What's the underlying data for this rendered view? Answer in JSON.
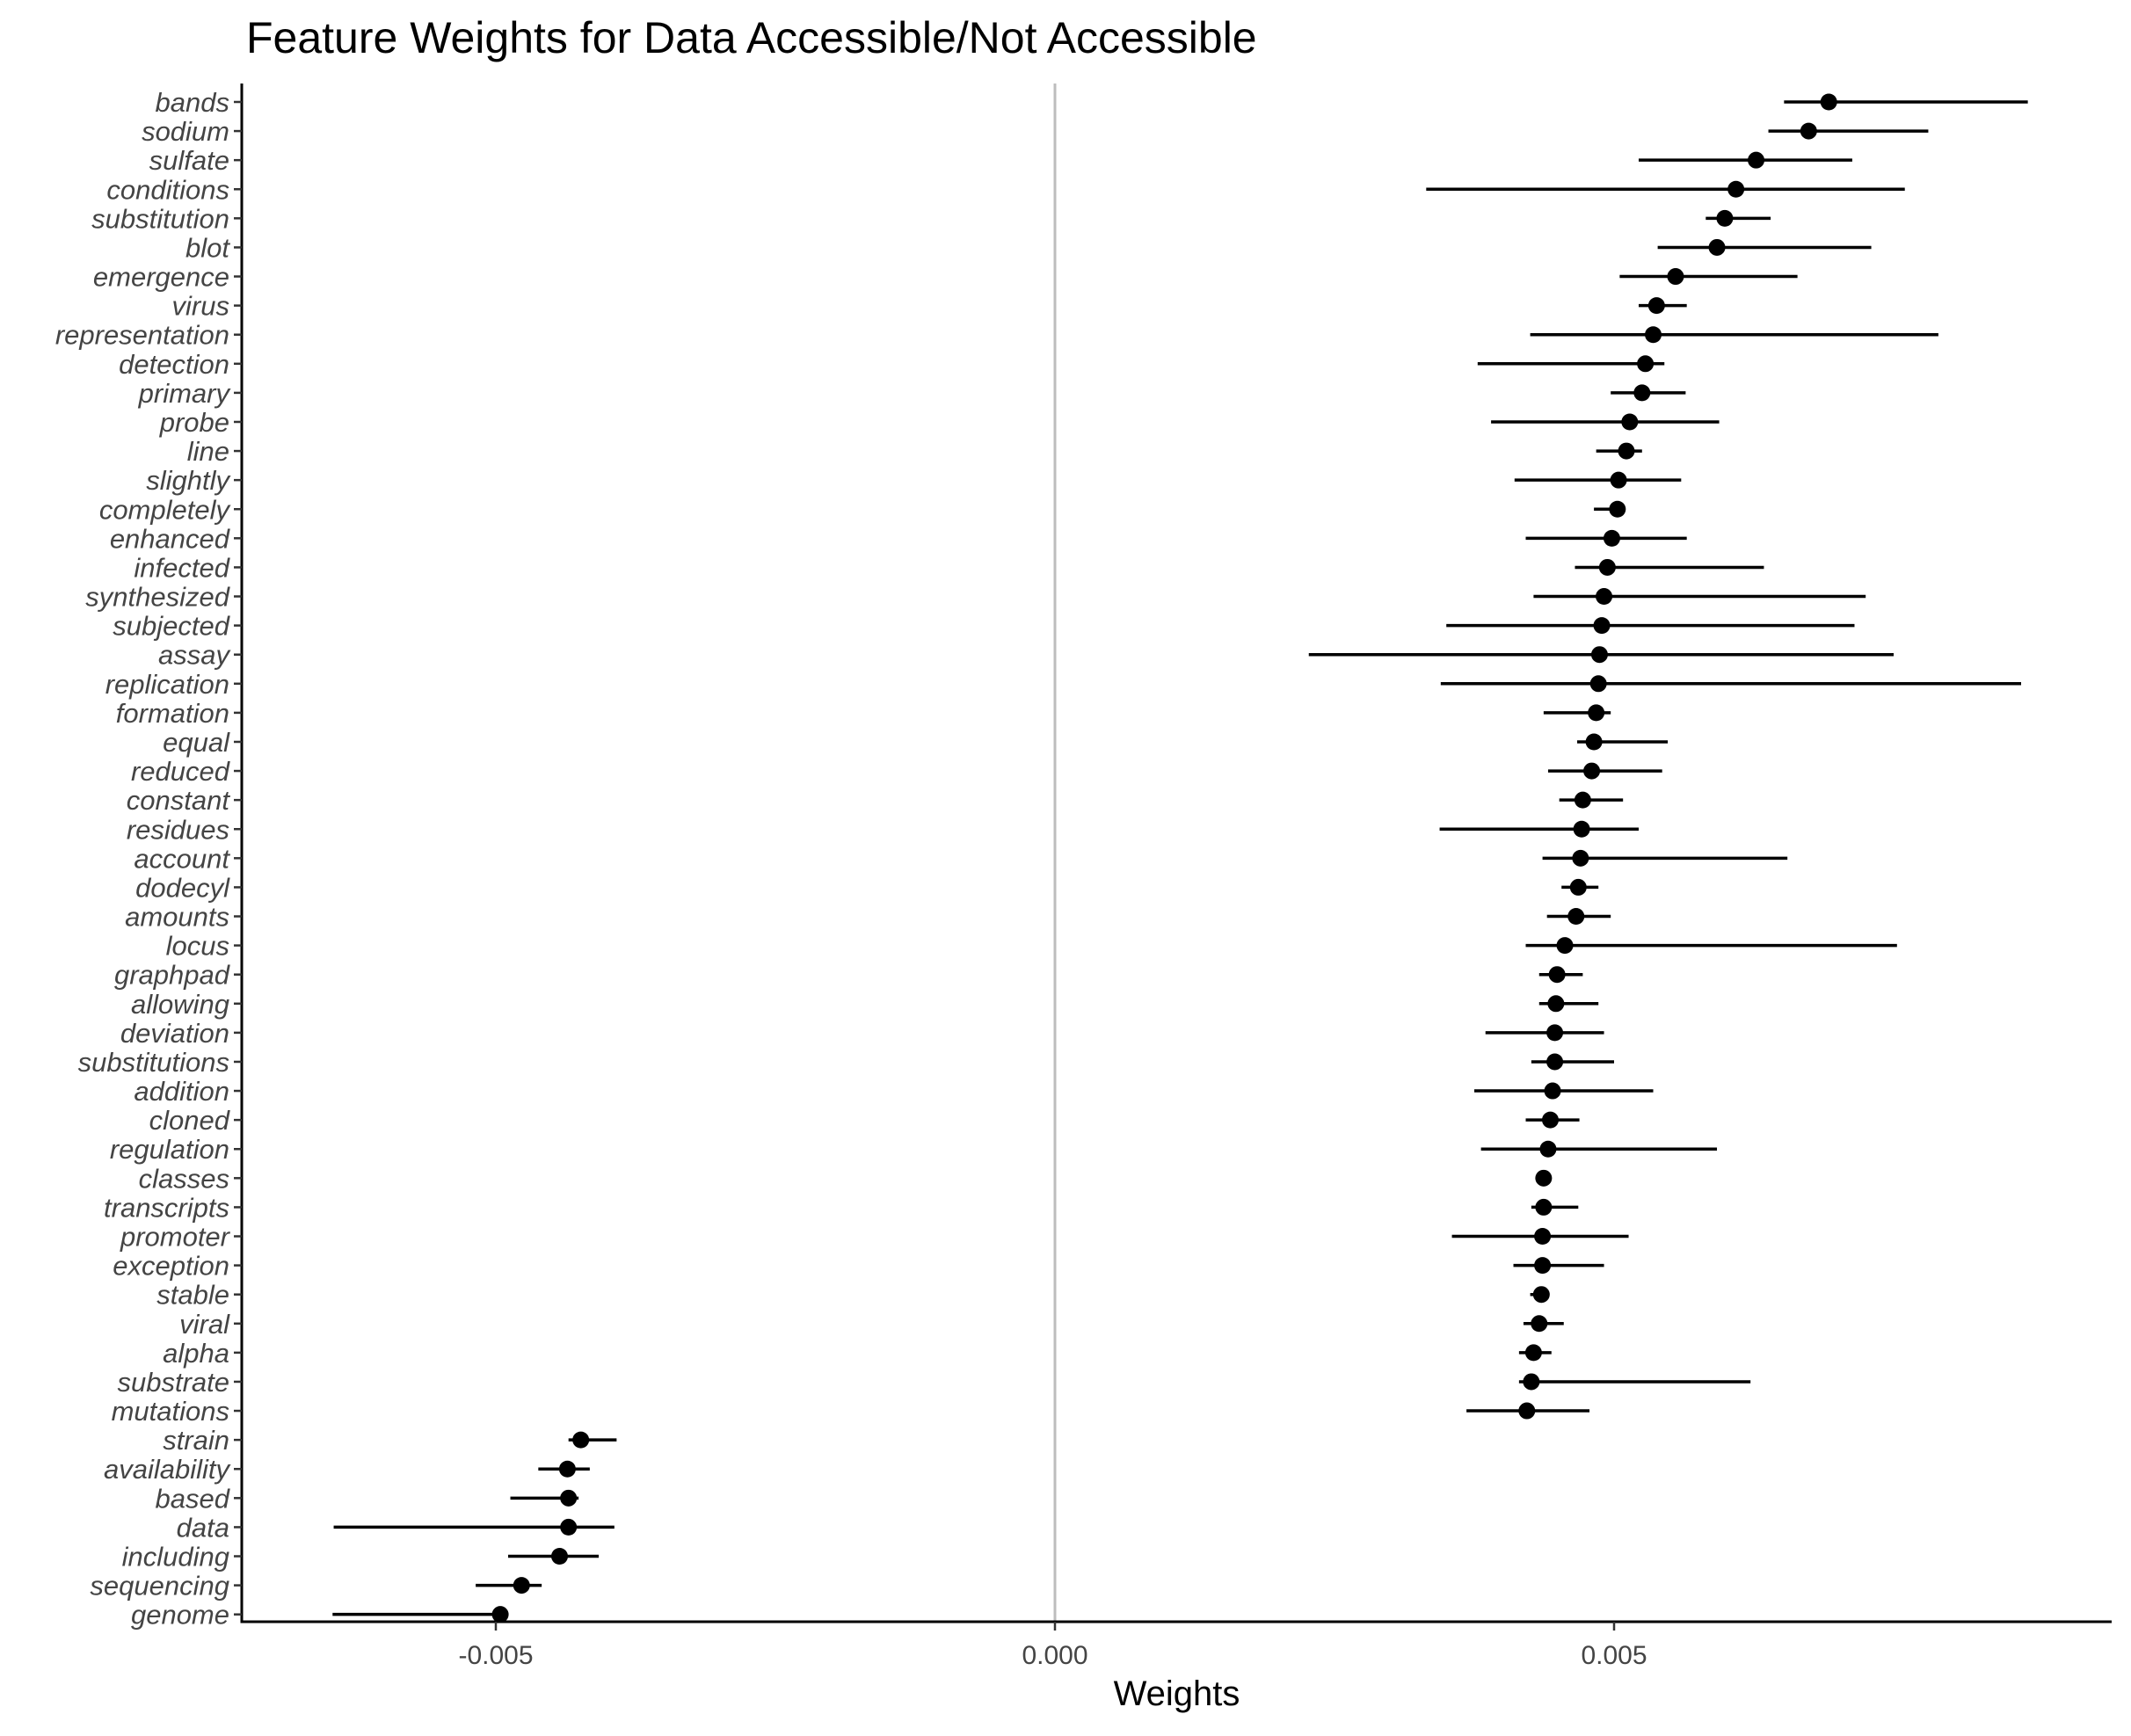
{
  "chart_data": {
    "type": "scatter",
    "title": "Feature Weights for Data Accessible/Not Accessible",
    "xlabel": "Weights",
    "ylabel": "",
    "xlim": [
      -0.0073,
      0.0094
    ],
    "x_ticks": [
      -0.005,
      0.0,
      0.005
    ],
    "x_tick_labels": [
      "-0.005",
      "0.000",
      "0.005"
    ],
    "reference_line_x": 0,
    "grid": false,
    "legend": "none",
    "point_color": "#000000",
    "reference_line_color": "#bdbdbd",
    "features": [
      {
        "name": "bands",
        "value": 0.00692,
        "low": 0.00652,
        "high": 0.0087
      },
      {
        "name": "sodium",
        "value": 0.00674,
        "low": 0.00638,
        "high": 0.00781
      },
      {
        "name": "sulfate",
        "value": 0.00627,
        "low": 0.00522,
        "high": 0.00713
      },
      {
        "name": "conditions",
        "value": 0.00609,
        "low": 0.00332,
        "high": 0.0076
      },
      {
        "name": "substitution",
        "value": 0.00599,
        "low": 0.00582,
        "high": 0.0064
      },
      {
        "name": "blot",
        "value": 0.00592,
        "low": 0.00539,
        "high": 0.0073
      },
      {
        "name": "emergence",
        "value": 0.00555,
        "low": 0.00505,
        "high": 0.00664
      },
      {
        "name": "virus",
        "value": 0.00538,
        "low": 0.00522,
        "high": 0.00565
      },
      {
        "name": "representation",
        "value": 0.00535,
        "low": 0.00425,
        "high": 0.0079
      },
      {
        "name": "detection",
        "value": 0.00528,
        "low": 0.00378,
        "high": 0.00545
      },
      {
        "name": "primary",
        "value": 0.00525,
        "low": 0.00497,
        "high": 0.00564
      },
      {
        "name": "probe",
        "value": 0.00514,
        "low": 0.0039,
        "high": 0.00594
      },
      {
        "name": "line",
        "value": 0.00511,
        "low": 0.00484,
        "high": 0.00525
      },
      {
        "name": "slightly",
        "value": 0.00504,
        "low": 0.00411,
        "high": 0.0056
      },
      {
        "name": "completely",
        "value": 0.00503,
        "low": 0.00482,
        "high": 0.00509
      },
      {
        "name": "enhanced",
        "value": 0.00498,
        "low": 0.00421,
        "high": 0.00565
      },
      {
        "name": "infected",
        "value": 0.00494,
        "low": 0.00465,
        "high": 0.00634
      },
      {
        "name": "synthesized",
        "value": 0.00491,
        "low": 0.00428,
        "high": 0.00725
      },
      {
        "name": "subjected",
        "value": 0.00489,
        "low": 0.0035,
        "high": 0.00715
      },
      {
        "name": "assay",
        "value": 0.00487,
        "low": 0.00227,
        "high": 0.0075
      },
      {
        "name": "replication",
        "value": 0.00486,
        "low": 0.00345,
        "high": 0.00864
      },
      {
        "name": "formation",
        "value": 0.00484,
        "low": 0.00437,
        "high": 0.00497
      },
      {
        "name": "equal",
        "value": 0.00482,
        "low": 0.00467,
        "high": 0.00548
      },
      {
        "name": "reduced",
        "value": 0.0048,
        "low": 0.00441,
        "high": 0.00543
      },
      {
        "name": "constant",
        "value": 0.00472,
        "low": 0.00451,
        "high": 0.00508
      },
      {
        "name": "residues",
        "value": 0.00471,
        "low": 0.00344,
        "high": 0.00522
      },
      {
        "name": "account",
        "value": 0.0047,
        "low": 0.00436,
        "high": 0.00655
      },
      {
        "name": "dodecyl",
        "value": 0.00468,
        "low": 0.00453,
        "high": 0.00486
      },
      {
        "name": "amounts",
        "value": 0.00466,
        "low": 0.0044,
        "high": 0.00497
      },
      {
        "name": "locus",
        "value": 0.00456,
        "low": 0.00421,
        "high": 0.00753
      },
      {
        "name": "graphpad",
        "value": 0.00449,
        "low": 0.00433,
        "high": 0.00472
      },
      {
        "name": "allowing",
        "value": 0.00448,
        "low": 0.00433,
        "high": 0.00486
      },
      {
        "name": "deviation",
        "value": 0.00447,
        "low": 0.00385,
        "high": 0.00491
      },
      {
        "name": "substitutions",
        "value": 0.00447,
        "low": 0.00426,
        "high": 0.005
      },
      {
        "name": "addition",
        "value": 0.00445,
        "low": 0.00375,
        "high": 0.00535
      },
      {
        "name": "cloned",
        "value": 0.00443,
        "low": 0.00421,
        "high": 0.00469
      },
      {
        "name": "regulation",
        "value": 0.00441,
        "low": 0.00381,
        "high": 0.00592
      },
      {
        "name": "classes",
        "value": 0.00437,
        "low": 0.0043,
        "high": 0.00443
      },
      {
        "name": "transcripts",
        "value": 0.00437,
        "low": 0.00426,
        "high": 0.00468
      },
      {
        "name": "promoter",
        "value": 0.00436,
        "low": 0.00355,
        "high": 0.00513
      },
      {
        "name": "exception",
        "value": 0.00436,
        "low": 0.0041,
        "high": 0.00491
      },
      {
        "name": "stable",
        "value": 0.00435,
        "low": 0.00425,
        "high": 0.00442
      },
      {
        "name": "viral",
        "value": 0.00433,
        "low": 0.00419,
        "high": 0.00455
      },
      {
        "name": "alpha",
        "value": 0.00428,
        "low": 0.00415,
        "high": 0.00444
      },
      {
        "name": "substrate",
        "value": 0.00426,
        "low": 0.00415,
        "high": 0.00622
      },
      {
        "name": "mutations",
        "value": 0.00422,
        "low": 0.00368,
        "high": 0.00478
      },
      {
        "name": "strain",
        "value": -0.00424,
        "low": -0.00435,
        "high": -0.00392
      },
      {
        "name": "availability",
        "value": -0.00436,
        "low": -0.00462,
        "high": -0.00416
      },
      {
        "name": "based",
        "value": -0.00435,
        "low": -0.00487,
        "high": -0.00426
      },
      {
        "name": "data",
        "value": -0.00435,
        "low": -0.00645,
        "high": -0.00394
      },
      {
        "name": "including",
        "value": -0.00443,
        "low": -0.00489,
        "high": -0.00408
      },
      {
        "name": "sequencing",
        "value": -0.00477,
        "low": -0.00518,
        "high": -0.00459
      },
      {
        "name": "genome",
        "value": -0.00496,
        "low": -0.00646,
        "high": -0.00496
      }
    ]
  }
}
